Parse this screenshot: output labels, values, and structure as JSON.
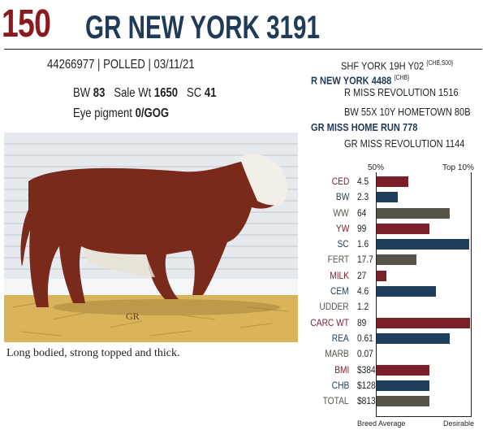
{
  "header": {
    "lot": "150",
    "name": "GR NEW YORK 3191"
  },
  "info": {
    "reg": "44266977 | POLLED | 03/11/21",
    "bw_label": "BW",
    "bw": "83",
    "salewt_label": "Sale Wt",
    "salewt": "1650",
    "sc_label": "SC",
    "sc": "41",
    "eye_label": "Eye pigment",
    "eye": "0/GOG"
  },
  "pedigree": {
    "sire_sire": "SHF YORK 19H Y02",
    "sire_sire_tag": "{CHB,S00}",
    "sire": "R NEW YORK 4488",
    "sire_tag": "{CHB}",
    "sire_dam": "R MISS REVOLUTION 1516",
    "dam_sire": "BW 55X 10Y HOMETOWN 80B",
    "dam": "GR MISS HOME RUN 778",
    "dam_dam": "GR MISS REVOLUTION 1144"
  },
  "caption": "Long bodied, strong topped and thick.",
  "photo_watermark": "GR",
  "epd": {
    "head_50": "50%",
    "head_top": "Top 10%",
    "foot_left": "Breed Average",
    "foot_right": "Desirable",
    "colors": {
      "maroon": "#7a1f28",
      "navy": "#1d3f5c",
      "olive": "#57554a"
    },
    "rows": [
      {
        "label": "CED",
        "value": "4.5",
        "color": "maroon",
        "fill": 0.34
      },
      {
        "label": "BW",
        "value": "2.3",
        "color": "navy",
        "fill": 0.22
      },
      {
        "label": "WW",
        "value": "64",
        "color": "olive",
        "fill": 0.78
      },
      {
        "label": "YW",
        "value": "99",
        "color": "maroon",
        "fill": 0.56
      },
      {
        "label": "SC",
        "value": "1.6",
        "color": "navy",
        "fill": 0.98
      },
      {
        "label": "FERT",
        "value": "17.7",
        "color": "olive",
        "fill": 0.42
      },
      {
        "label": "MILK",
        "value": "27",
        "color": "maroon",
        "fill": 0.1
      },
      {
        "label": "CEM",
        "value": "4.6",
        "color": "navy",
        "fill": 0.63
      },
      {
        "label": "UDDER",
        "value": "1.2",
        "color": "olive",
        "fill": 0
      },
      {
        "label": "CARC WT",
        "value": "89",
        "color": "maroon",
        "fill": 0.99
      },
      {
        "label": "REA",
        "value": "0.61",
        "color": "navy",
        "fill": 0.78
      },
      {
        "label": "MARB",
        "value": "0.07",
        "color": "olive",
        "fill": 0
      },
      {
        "label": "BMI",
        "value": "$384",
        "color": "maroon",
        "fill": 0.56
      },
      {
        "label": "CHB",
        "value": "$128",
        "color": "navy",
        "fill": 0.56
      },
      {
        "label": "TOTAL",
        "value": "$813",
        "color": "olive",
        "fill": 0.56
      }
    ]
  }
}
